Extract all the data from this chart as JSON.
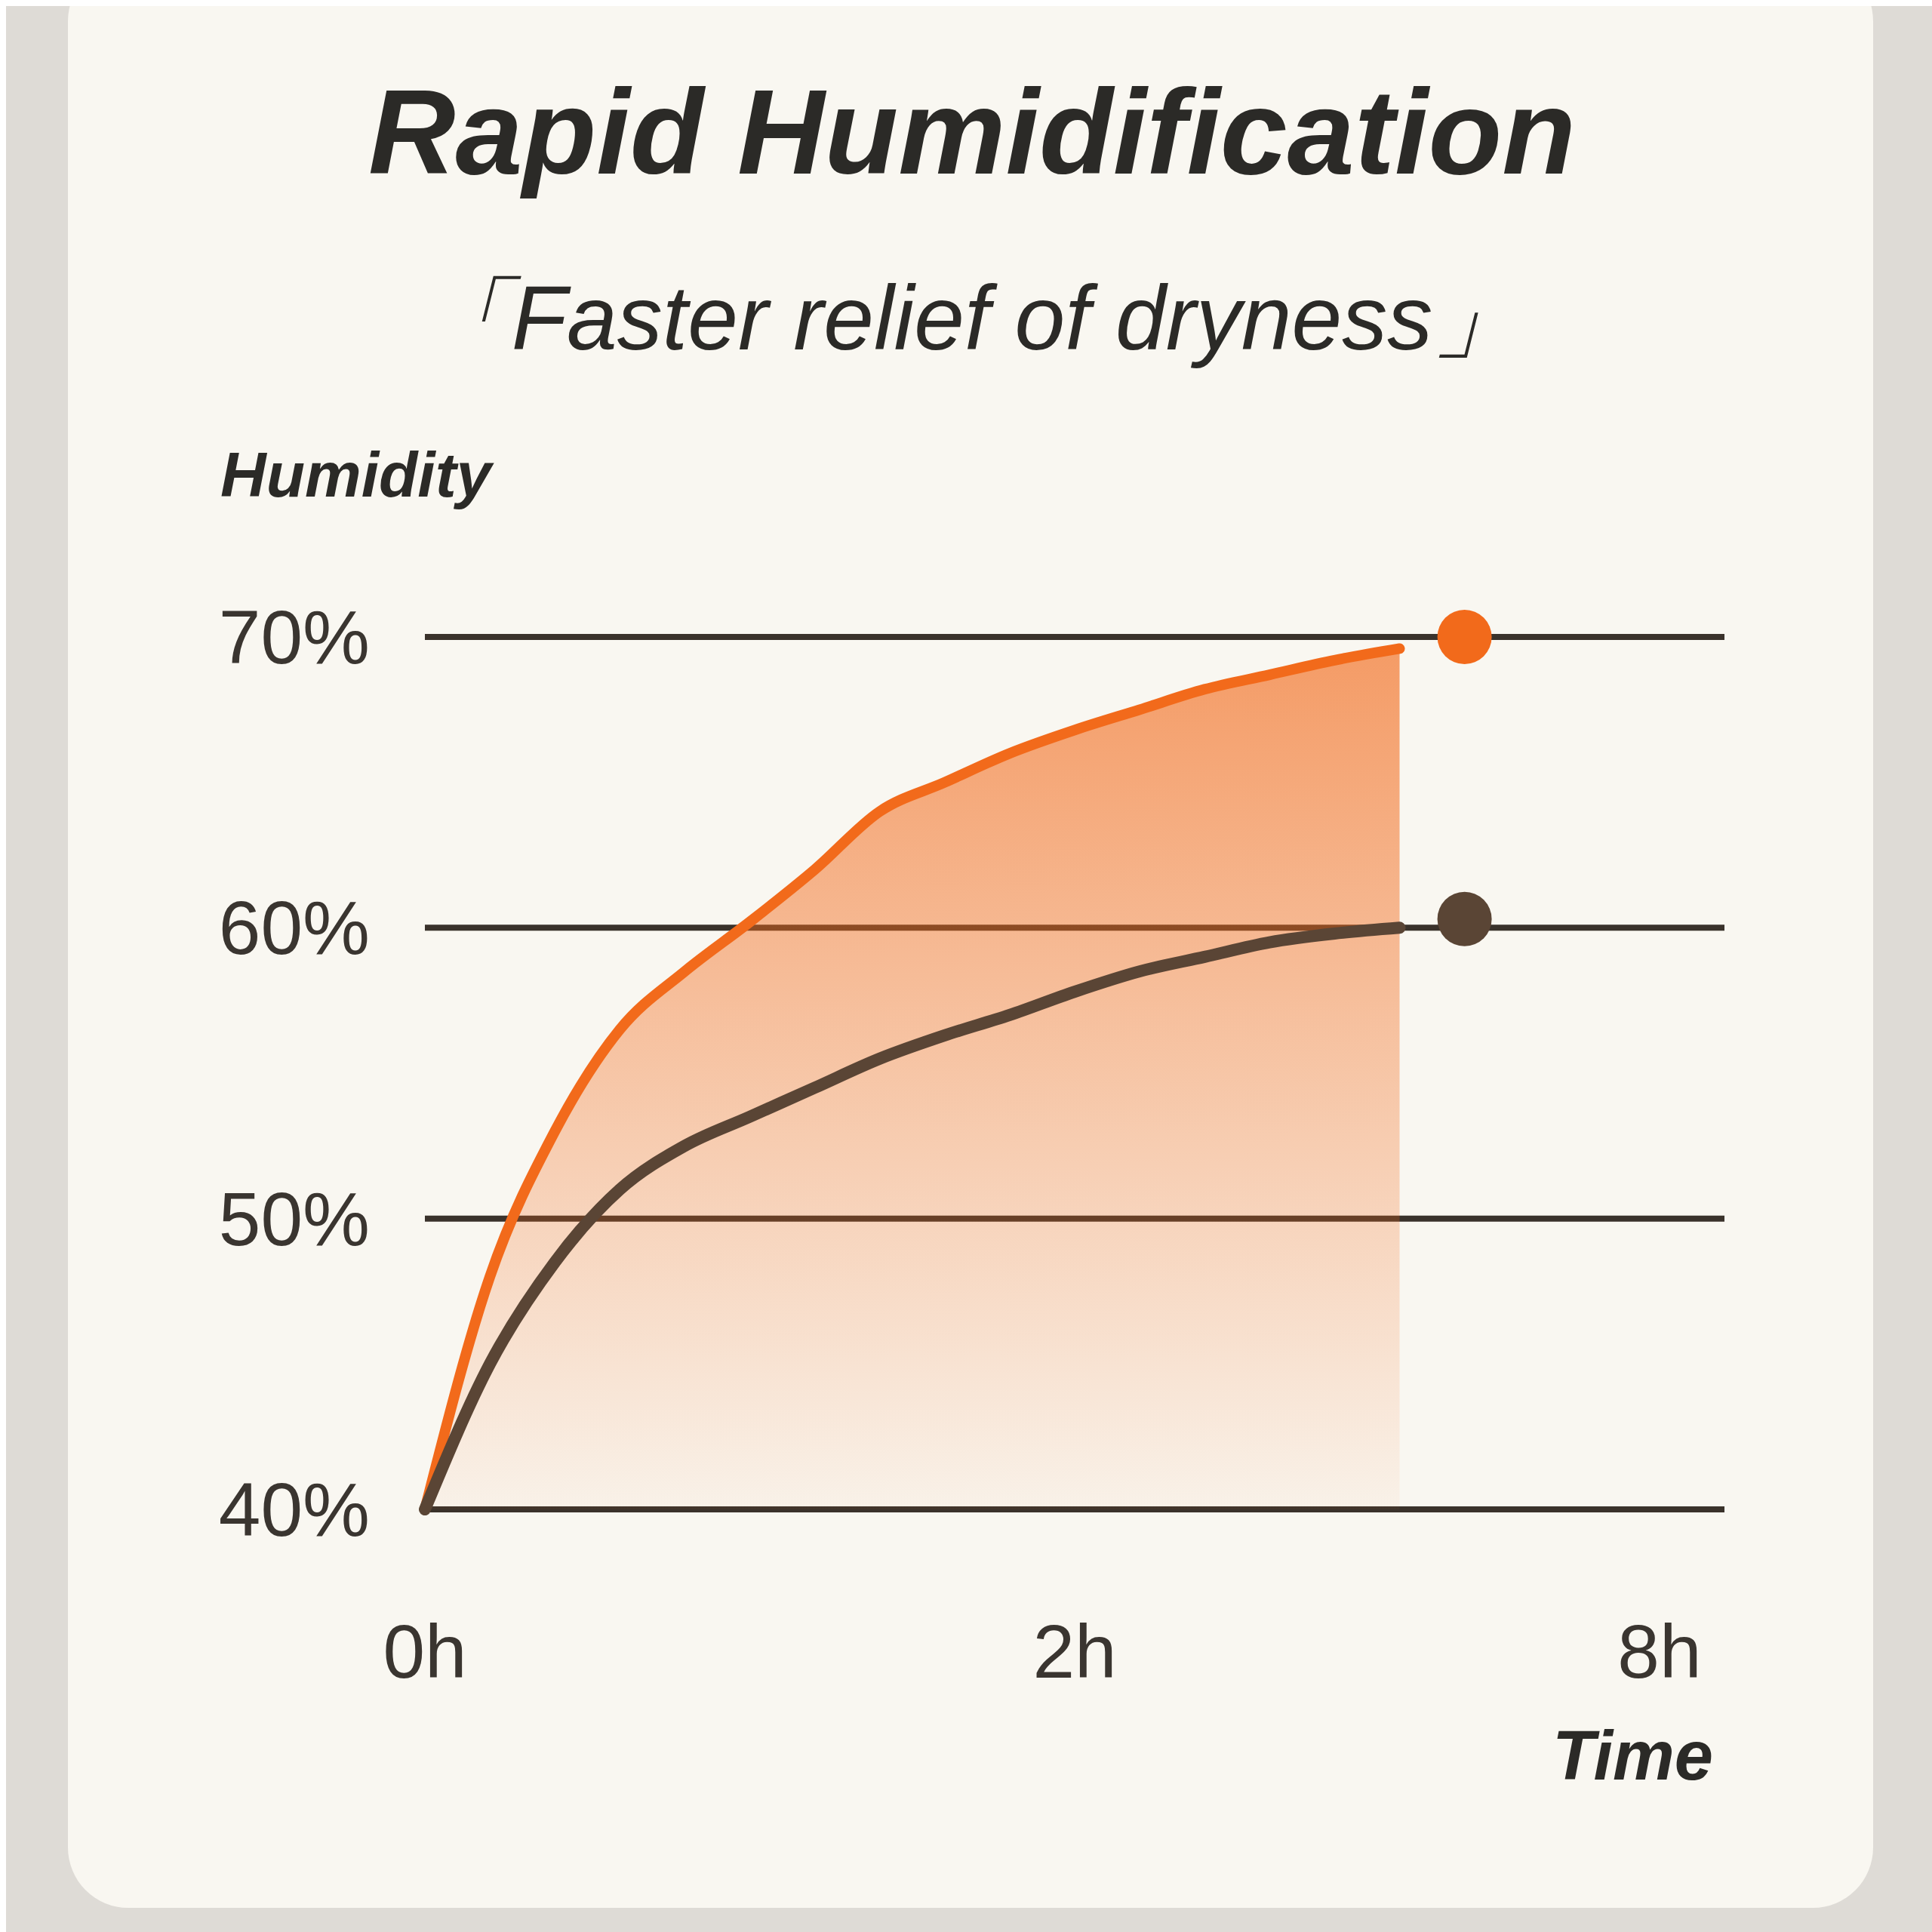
{
  "chart_data": {
    "type": "line",
    "title": "Rapid Humidification",
    "subtitle": "「Faster relief of dryness」",
    "xlabel": "Time",
    "ylabel": "Humidity",
    "categories": [
      "0h",
      null,
      null,
      null,
      null,
      null,
      null,
      null,
      null,
      null,
      "2h",
      null,
      null,
      null,
      null,
      null,
      null,
      null,
      null,
      "8h",
      null
    ],
    "series": [
      {
        "type": "area",
        "color": "#f26a1b",
        "values": [
          40,
          48,
          53,
          56.5,
          58.5,
          60.2,
          62,
          64,
          65,
          66,
          66.8,
          67.5,
          68.2,
          68.7,
          69.2,
          69.6,
          null,
          null,
          null,
          null,
          null
        ]
      },
      {
        "color": "#5a4535",
        "values": [
          40,
          45,
          48.5,
          51,
          52.5,
          53.5,
          54.5,
          55.5,
          56.3,
          57,
          57.8,
          58.5,
          59,
          59.5,
          59.8,
          60,
          null,
          null,
          null,
          null,
          null
        ]
      },
      {
        "type": "scatter",
        "color": "#f26a1b",
        "values": [
          null,
          null,
          null,
          null,
          null,
          null,
          null,
          null,
          null,
          null,
          null,
          null,
          null,
          null,
          null,
          null,
          70,
          null,
          null,
          null,
          null
        ]
      },
      {
        "type": "scatter",
        "color": "#5a4535",
        "values": [
          null,
          null,
          null,
          null,
          null,
          null,
          null,
          null,
          null,
          null,
          null,
          null,
          null,
          null,
          null,
          null,
          60.3,
          null,
          null,
          null,
          null
        ]
      }
    ],
    "ylim": [
      40,
      70
    ],
    "yticks": [
      {
        "value": 40,
        "label": "40%"
      },
      {
        "value": 50,
        "label": "50%"
      },
      {
        "value": 60,
        "label": "60%"
      },
      {
        "value": 70,
        "label": "70%"
      }
    ],
    "grid": "y",
    "line_style": "solid"
  }
}
